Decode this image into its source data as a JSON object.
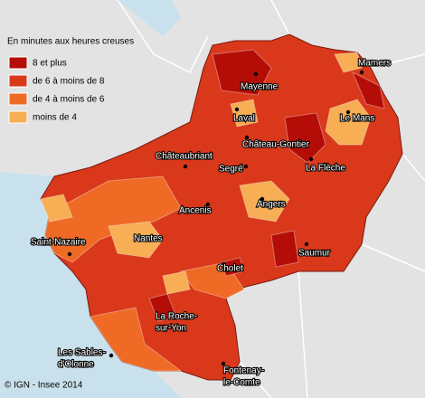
{
  "legend": {
    "title": "En minutes aux heures creuses",
    "items": [
      {
        "label": "8 et plus",
        "color": "#b40d08"
      },
      {
        "label": "de 6 à moins de 8",
        "color": "#d9381b"
      },
      {
        "label": "de 4 à moins de 6",
        "color": "#ee6a25"
      },
      {
        "label": "moins de 4",
        "color": "#f7ae55"
      }
    ]
  },
  "cities": [
    {
      "lines": [
        "Mamers"
      ]
    },
    {
      "lines": [
        "Mayenne"
      ]
    },
    {
      "lines": [
        "Laval"
      ]
    },
    {
      "lines": [
        "Le Mans"
      ]
    },
    {
      "lines": [
        "Château-Gontier"
      ]
    },
    {
      "lines": [
        "Châteaubriant"
      ]
    },
    {
      "lines": [
        "Segré"
      ]
    },
    {
      "lines": [
        "La Flèche"
      ]
    },
    {
      "lines": [
        "Ancenis"
      ]
    },
    {
      "lines": [
        "Angers"
      ]
    },
    {
      "lines": [
        "Saint-Nazaire"
      ]
    },
    {
      "lines": [
        "Nantes"
      ]
    },
    {
      "lines": [
        "Saumur"
      ]
    },
    {
      "lines": [
        "Cholet"
      ]
    },
    {
      "lines": [
        "La Roche-",
        "sur-Yon"
      ]
    },
    {
      "lines": [
        "Les Sables-",
        "d'Olonne"
      ]
    },
    {
      "lines": [
        "Fontenay-",
        "le-Comte"
      ]
    }
  ],
  "credit": "© IGN - Insee 2014"
}
